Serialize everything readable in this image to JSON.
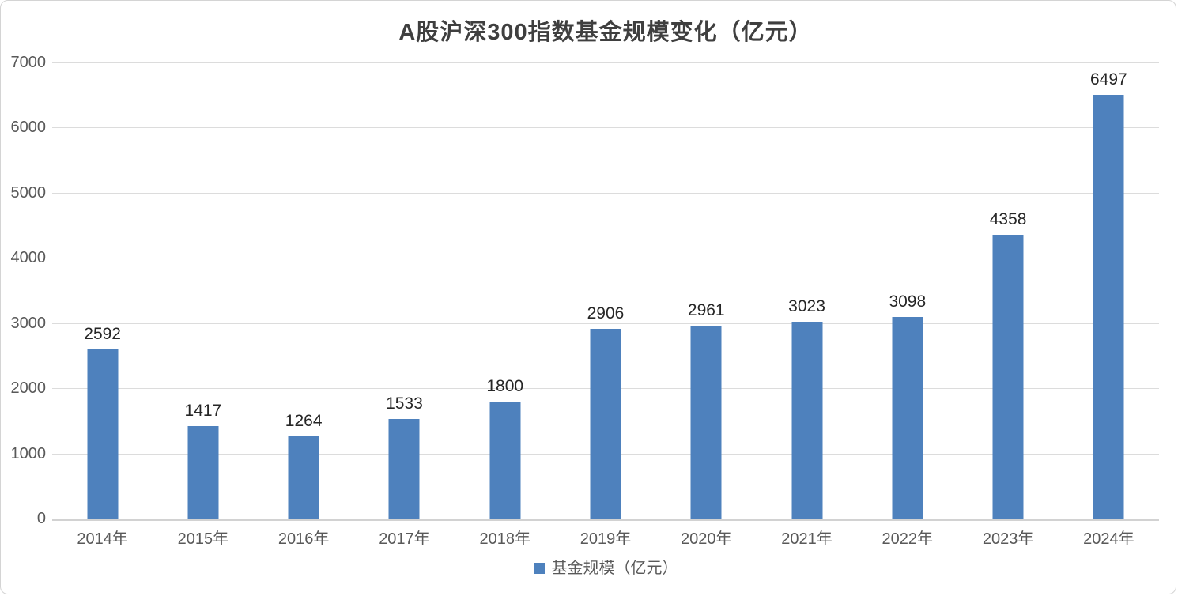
{
  "chart_data": {
    "type": "bar",
    "title": "A股沪深300指数基金规模变化（亿元）",
    "categories": [
      "2014年",
      "2015年",
      "2016年",
      "2017年",
      "2018年",
      "2019年",
      "2020年",
      "2021年",
      "2022年",
      "2023年",
      "2024年"
    ],
    "series": [
      {
        "name": "基金规模（亿元）",
        "values": [
          2592,
          1417,
          1264,
          1533,
          1800,
          2906,
          2961,
          3023,
          3098,
          4358,
          6497
        ]
      }
    ],
    "data_labels": [
      2592,
      1417,
      1264,
      1533,
      1800,
      2906,
      2961,
      3023,
      3098,
      4358,
      6497
    ],
    "xlabel": "",
    "ylabel": "",
    "ylim": [
      0,
      7000
    ],
    "yticks": [
      0,
      1000,
      2000,
      3000,
      4000,
      5000,
      6000,
      7000
    ],
    "grid": true,
    "legend_position": "bottom",
    "legend_label": "基金规模（亿元）",
    "colors": {
      "bar": "#4E81BD",
      "gridline": "#dcdcdc",
      "axis_text": "#595959",
      "data_label_text": "#262626",
      "title_text": "#3f3f3f"
    }
  }
}
